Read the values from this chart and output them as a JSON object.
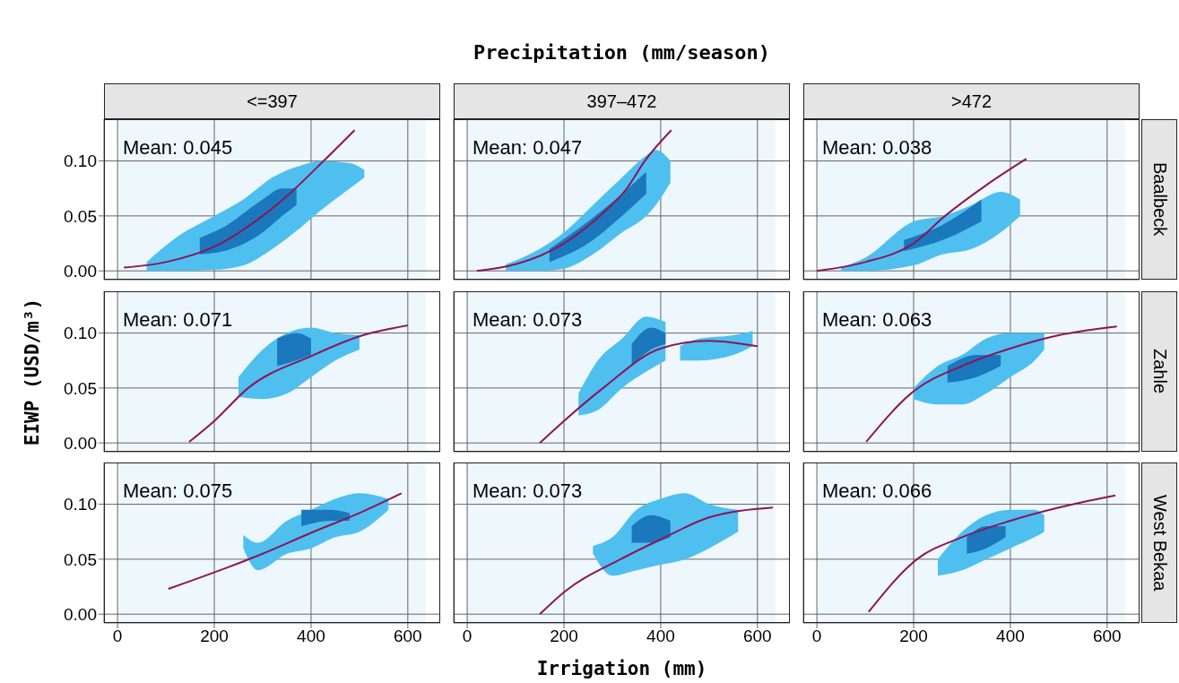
{
  "chart_data": [
    {
      "type": "line",
      "subtitle": "<=397",
      "xlim": [
        -28,
        667
      ],
      "ylim": [
        -0.008,
        0.138
      ],
      "xticks": [
        0,
        200,
        400,
        600
      ],
      "yticks": [
        {
          "value": 0,
          "label": "0.00"
        },
        {
          "value": 0.05,
          "label": "0.05"
        },
        {
          "value": 0.1,
          "label": "0.10"
        }
      ],
      "grid": true,
      "tick_labels": "y",
      "bands": [
        {
          "axis": "x",
          "from": 0,
          "to": 637,
          "color": "#eef7fc"
        }
      ],
      "annotations": [
        "Mean: 0.045"
      ],
      "series": [
        {
          "type": "area",
          "color": "#4fbff0",
          "x": [
            60,
            120,
            200,
            260,
            320,
            380,
            420,
            480,
            510
          ],
          "values": [
            null,
            null,
            null,
            null,
            null,
            null,
            null,
            null,
            null
          ],
          "lower": [
            0.0,
            0.0,
            0.001,
            0.005,
            0.02,
            0.04,
            0.055,
            0.075,
            0.085
          ],
          "upper": [
            0.008,
            0.03,
            0.05,
            0.065,
            0.085,
            0.096,
            0.1,
            0.098,
            0.092
          ]
        },
        {
          "type": "area",
          "color": "#1b78bd",
          "x": [
            170,
            220,
            300,
            340,
            370
          ],
          "values": [
            null,
            null,
            null,
            null,
            null
          ],
          "lower": [
            0.015,
            0.018,
            0.035,
            0.05,
            0.06
          ],
          "upper": [
            0.03,
            0.04,
            0.065,
            0.075,
            0.075
          ]
        },
        {
          "color": "#8b1657",
          "x": [
            13,
            100,
            200,
            300,
            360,
            426,
            490
          ],
          "values": [
            0.003,
            0.008,
            0.022,
            0.05,
            0.072,
            0.1,
            0.128
          ]
        }
      ]
    },
    {
      "type": "line",
      "title": "Precipitation (mm/season)",
      "subtitle": "397–472",
      "xlim": [
        -28,
        667
      ],
      "ylim": [
        -0.008,
        0.138
      ],
      "xticks": [
        0,
        200,
        400,
        600
      ],
      "yticks": [
        0,
        0.05,
        0.1
      ],
      "grid": true,
      "tick_labels": false,
      "bands": [
        {
          "axis": "x",
          "from": 0,
          "to": 637,
          "color": "#eef7fc"
        }
      ],
      "annotations": [
        "Mean: 0.047"
      ],
      "series": [
        {
          "type": "area",
          "color": "#4fbff0",
          "x": [
            80,
            150,
            200,
            260,
            320,
            370,
            390,
            420
          ],
          "values": [
            null,
            null,
            null,
            null,
            null,
            null,
            null,
            null
          ],
          "lower": [
            0.0,
            0.0,
            0.002,
            0.015,
            0.035,
            0.05,
            0.06,
            0.08
          ],
          "upper": [
            0.006,
            0.02,
            0.035,
            0.06,
            0.085,
            0.105,
            0.11,
            0.1
          ]
        },
        {
          "type": "area",
          "color": "#1b78bd",
          "x": [
            170,
            250,
            320,
            370
          ],
          "values": [
            null,
            null,
            null,
            null
          ],
          "lower": [
            0.008,
            0.025,
            0.05,
            0.07
          ],
          "upper": [
            0.02,
            0.045,
            0.07,
            0.09
          ]
        },
        {
          "color": "#8b1657",
          "x": [
            20,
            100,
            200,
            274,
            330,
            367,
            422
          ],
          "values": [
            0.0,
            0.006,
            0.025,
            0.05,
            0.075,
            0.1,
            0.128
          ]
        }
      ]
    },
    {
      "type": "line",
      "subtitle": ">472",
      "y2label": "Baalbeck",
      "xlim": [
        -28,
        667
      ],
      "ylim": [
        -0.008,
        0.138
      ],
      "xticks": [
        0,
        200,
        400,
        600
      ],
      "yticks": [
        0,
        0.05,
        0.1
      ],
      "grid": true,
      "tick_labels": false,
      "bands": [
        {
          "axis": "x",
          "from": 0,
          "to": 637,
          "color": "#eef7fc"
        }
      ],
      "annotations": [
        "Mean: 0.038"
      ],
      "series": [
        {
          "type": "area",
          "color": "#4fbff0",
          "x": [
            50,
            100,
            200,
            260,
            320,
            380,
            420
          ],
          "values": [
            null,
            null,
            null,
            null,
            null,
            null,
            null
          ],
          "lower": [
            0.0,
            0.0,
            0.005,
            0.015,
            0.02,
            0.035,
            0.05
          ],
          "upper": [
            0.003,
            0.012,
            0.045,
            0.05,
            0.06,
            0.072,
            0.065
          ]
        },
        {
          "type": "area",
          "color": "#1b78bd",
          "x": [
            180,
            260,
            340
          ],
          "values": [
            null,
            null,
            null
          ],
          "lower": [
            0.018,
            0.028,
            0.045
          ],
          "upper": [
            0.028,
            0.042,
            0.065
          ]
        },
        {
          "color": "#8b1657",
          "x": [
            0,
            100,
            200,
            265,
            350,
            433
          ],
          "values": [
            0.0,
            0.008,
            0.025,
            0.05,
            0.078,
            0.102
          ]
        }
      ]
    },
    {
      "type": "line",
      "ylabel": "EIWP (USD/m³)",
      "xlim": [
        -28,
        667
      ],
      "ylim": [
        -0.008,
        0.138
      ],
      "xticks": [
        0,
        200,
        400,
        600
      ],
      "yticks": [
        {
          "value": 0,
          "label": "0.00"
        },
        {
          "value": 0.05,
          "label": "0.05"
        },
        {
          "value": 0.1,
          "label": "0.10"
        }
      ],
      "grid": true,
      "tick_labels": "y",
      "bands": [
        {
          "axis": "x",
          "from": 0,
          "to": 637,
          "color": "#eef7fc"
        }
      ],
      "annotations": [
        "Mean: 0.071"
      ],
      "series": [
        {
          "type": "area",
          "color": "#4fbff0",
          "x": [
            250,
            300,
            350,
            400,
            450,
            500
          ],
          "values": [
            null,
            null,
            null,
            null,
            null,
            null
          ],
          "lower": [
            0.042,
            0.04,
            0.045,
            0.06,
            0.075,
            0.085
          ],
          "upper": [
            0.06,
            0.085,
            0.1,
            0.105,
            0.1,
            0.098
          ]
        },
        {
          "type": "area",
          "color": "#1b78bd",
          "x": [
            330,
            370,
            400
          ],
          "values": [
            null,
            null,
            null
          ],
          "lower": [
            0.07,
            0.075,
            0.08
          ],
          "upper": [
            0.095,
            0.1,
            0.095
          ]
        },
        {
          "color": "#8b1657",
          "x": [
            148,
            200,
            270,
            400,
            500,
            600
          ],
          "values": [
            0.001,
            0.02,
            0.05,
            0.079,
            0.097,
            0.107
          ]
        }
      ]
    },
    {
      "type": "line",
      "xlim": [
        -28,
        667
      ],
      "ylim": [
        -0.008,
        0.138
      ],
      "xticks": [
        0,
        200,
        400,
        600
      ],
      "yticks": [
        0,
        0.05,
        0.1
      ],
      "grid": true,
      "tick_labels": false,
      "bands": [
        {
          "axis": "x",
          "from": 0,
          "to": 637,
          "color": "#eef7fc"
        }
      ],
      "annotations": [
        "Mean: 0.073"
      ],
      "series": [
        {
          "type": "area",
          "color": "#4fbff0",
          "x": [
            230,
            270,
            320,
            370,
            410
          ],
          "values": [
            null,
            null,
            null,
            null,
            null
          ],
          "lower": [
            0.025,
            0.03,
            0.05,
            0.065,
            0.075
          ],
          "upper": [
            0.045,
            0.075,
            0.095,
            0.115,
            0.11
          ]
        },
        {
          "type": "area",
          "color": "#4fbff0",
          "x": [
            440,
            480,
            550,
            590
          ],
          "values": [
            null,
            null,
            null,
            null
          ],
          "lower": [
            0.075,
            0.075,
            0.08,
            0.088
          ],
          "upper": [
            0.088,
            0.095,
            0.098,
            0.102
          ]
        },
        {
          "type": "area",
          "color": "#1b78bd",
          "x": [
            340,
            380,
            410
          ],
          "values": [
            null,
            null,
            null
          ],
          "lower": [
            0.07,
            0.085,
            0.09
          ],
          "upper": [
            0.09,
            0.105,
            0.1
          ]
        },
        {
          "color": "#8b1657",
          "x": [
            150,
            200,
            281,
            400,
            500,
            600
          ],
          "values": [
            0.0,
            0.02,
            0.05,
            0.086,
            0.093,
            0.088
          ]
        }
      ]
    },
    {
      "type": "line",
      "y2label": "Zahle",
      "xlim": [
        -28,
        667
      ],
      "ylim": [
        -0.008,
        0.138
      ],
      "xticks": [
        0,
        200,
        400,
        600
      ],
      "yticks": [
        0,
        0.05,
        0.1
      ],
      "grid": true,
      "tick_labels": false,
      "bands": [
        {
          "axis": "x",
          "from": 0,
          "to": 637,
          "color": "#eef7fc"
        }
      ],
      "annotations": [
        "Mean: 0.063"
      ],
      "series": [
        {
          "type": "area",
          "color": "#4fbff0",
          "x": [
            200,
            250,
            300,
            350,
            400,
            450,
            470
          ],
          "values": [
            null,
            null,
            null,
            null,
            null,
            null,
            null
          ],
          "lower": [
            0.04,
            0.035,
            0.035,
            0.045,
            0.06,
            0.075,
            0.085
          ],
          "upper": [
            0.05,
            0.07,
            0.08,
            0.095,
            0.1,
            0.1,
            0.1
          ]
        },
        {
          "type": "area",
          "color": "#1b78bd",
          "x": [
            270,
            330,
            380
          ],
          "values": [
            null,
            null,
            null
          ],
          "lower": [
            0.055,
            0.06,
            0.07
          ],
          "upper": [
            0.07,
            0.08,
            0.08
          ]
        },
        {
          "color": "#8b1657",
          "x": [
            102,
            200,
            300,
            400,
            500,
            620
          ],
          "values": [
            0.001,
            0.047,
            0.07,
            0.086,
            0.098,
            0.106
          ]
        }
      ]
    },
    {
      "type": "line",
      "xlim": [
        -28,
        667
      ],
      "ylim": [
        -0.008,
        0.138
      ],
      "xticks": [
        0,
        200,
        400,
        600
      ],
      "yticks": [
        {
          "value": 0,
          "label": "0.00"
        },
        {
          "value": 0.05,
          "label": "0.05"
        },
        {
          "value": 0.1,
          "label": "0.10"
        }
      ],
      "grid": true,
      "bands": [
        {
          "axis": "x",
          "from": 0,
          "to": 637,
          "color": "#eef7fc"
        }
      ],
      "annotations": [
        "Mean: 0.075"
      ],
      "series": [
        {
          "type": "area",
          "color": "#4fbff0",
          "x": [
            260,
            290,
            350,
            400,
            450,
            500,
            560
          ],
          "values": [
            null,
            null,
            null,
            null,
            null,
            null,
            null
          ],
          "lower": [
            0.06,
            0.04,
            0.055,
            0.06,
            0.07,
            0.075,
            0.095
          ],
          "upper": [
            0.072,
            0.065,
            0.085,
            0.095,
            0.105,
            0.11,
            0.105
          ]
        },
        {
          "type": "area",
          "color": "#1b78bd",
          "x": [
            380,
            440,
            480
          ],
          "values": [
            null,
            null,
            null
          ],
          "lower": [
            0.08,
            0.085,
            0.085
          ],
          "upper": [
            0.095,
            0.095,
            0.092
          ]
        },
        {
          "color": "#8b1657",
          "x": [
            105,
            300,
            400,
            500,
            587
          ],
          "values": [
            0.023,
            0.055,
            0.074,
            0.092,
            0.11
          ]
        }
      ]
    },
    {
      "type": "line",
      "xlabel": "Irrigation (mm)",
      "xlim": [
        -28,
        667
      ],
      "ylim": [
        -0.008,
        0.138
      ],
      "xticks": [
        0,
        200,
        400,
        600
      ],
      "yticks": [
        0,
        0.05,
        0.1
      ],
      "grid": true,
      "tick_labels": "x",
      "bands": [
        {
          "axis": "x",
          "from": 0,
          "to": 637,
          "color": "#eef7fc"
        }
      ],
      "annotations": [
        "Mean: 0.073"
      ],
      "series": [
        {
          "type": "area",
          "color": "#4fbff0",
          "x": [
            260,
            300,
            350,
            400,
            450,
            500,
            560
          ],
          "values": [
            null,
            null,
            null,
            null,
            null,
            null,
            null
          ],
          "lower": [
            0.055,
            0.035,
            0.04,
            0.045,
            0.05,
            0.06,
            0.075
          ],
          "upper": [
            0.062,
            0.07,
            0.095,
            0.105,
            0.11,
            0.1,
            0.095
          ]
        },
        {
          "type": "area",
          "color": "#1b78bd",
          "x": [
            340,
            380,
            420
          ],
          "values": [
            null,
            null,
            null
          ],
          "lower": [
            0.065,
            0.065,
            0.07
          ],
          "upper": [
            0.08,
            0.09,
            0.085
          ]
        },
        {
          "color": "#8b1657",
          "x": [
            150,
            200,
            317,
            400,
            500,
            632
          ],
          "values": [
            0.0,
            0.02,
            0.05,
            0.068,
            0.088,
            0.097
          ]
        }
      ]
    },
    {
      "type": "line",
      "y2label": "West Bekaa",
      "xlim": [
        -28,
        667
      ],
      "ylim": [
        -0.008,
        0.138
      ],
      "xticks": [
        0,
        200,
        400,
        600
      ],
      "yticks": [
        0,
        0.05,
        0.1
      ],
      "grid": true,
      "tick_labels": "x",
      "bands": [
        {
          "axis": "x",
          "from": 0,
          "to": 637,
          "color": "#eef7fc"
        }
      ],
      "annotations": [
        "Mean: 0.066"
      ],
      "series": [
        {
          "type": "area",
          "color": "#4fbff0",
          "x": [
            250,
            300,
            350,
            400,
            450,
            470
          ],
          "values": [
            null,
            null,
            null,
            null,
            null,
            null
          ],
          "lower": [
            0.035,
            0.04,
            0.05,
            0.06,
            0.07,
            0.075
          ],
          "upper": [
            0.05,
            0.075,
            0.09,
            0.095,
            0.095,
            0.09
          ]
        },
        {
          "type": "area",
          "color": "#1b78bd",
          "x": [
            310,
            350,
            390
          ],
          "values": [
            null,
            null,
            null
          ],
          "lower": [
            0.055,
            0.06,
            0.07
          ],
          "upper": [
            0.07,
            0.08,
            0.08
          ]
        },
        {
          "color": "#8b1657",
          "x": [
            107,
            207,
            300,
            400,
            500,
            617
          ],
          "values": [
            0.002,
            0.05,
            0.07,
            0.085,
            0.097,
            0.108
          ]
        }
      ]
    }
  ]
}
